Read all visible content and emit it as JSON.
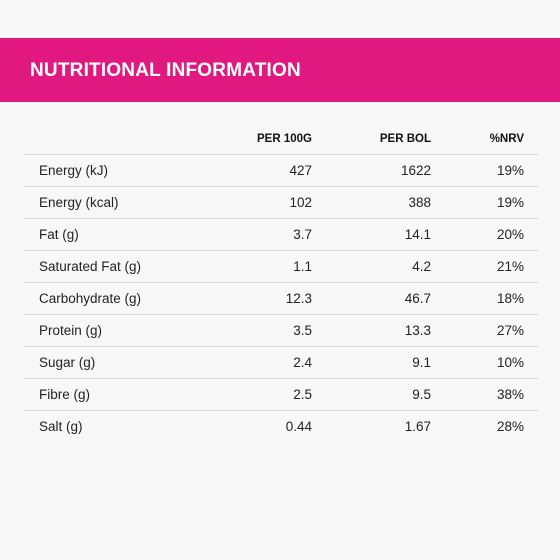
{
  "header": {
    "title": "NUTRITIONAL INFORMATION",
    "color": "#e0187f"
  },
  "table": {
    "columns": [
      "",
      "PER 100G",
      "PER BOL",
      "%NRV"
    ],
    "rows": [
      {
        "name": "Energy (kJ)",
        "per100g": "427",
        "perBol": "1622",
        "nrv": "19%"
      },
      {
        "name": "Energy (kcal)",
        "per100g": "102",
        "perBol": "388",
        "nrv": "19%"
      },
      {
        "name": "Fat (g)",
        "per100g": "3.7",
        "perBol": "14.1",
        "nrv": "20%"
      },
      {
        "name": "Saturated Fat (g)",
        "per100g": "1.1",
        "perBol": "4.2",
        "nrv": "21%"
      },
      {
        "name": "Carbohydrate (g)",
        "per100g": "12.3",
        "perBol": "46.7",
        "nrv": "18%"
      },
      {
        "name": "Protein (g)",
        "per100g": "3.5",
        "perBol": "13.3",
        "nrv": "27%"
      },
      {
        "name": "Sugar (g)",
        "per100g": "2.4",
        "perBol": "9.1",
        "nrv": "10%"
      },
      {
        "name": "Fibre (g)",
        "per100g": "2.5",
        "perBol": "9.5",
        "nrv": "38%"
      },
      {
        "name": "Salt (g)",
        "per100g": "0.44",
        "perBol": "1.67",
        "nrv": "28%"
      }
    ]
  }
}
